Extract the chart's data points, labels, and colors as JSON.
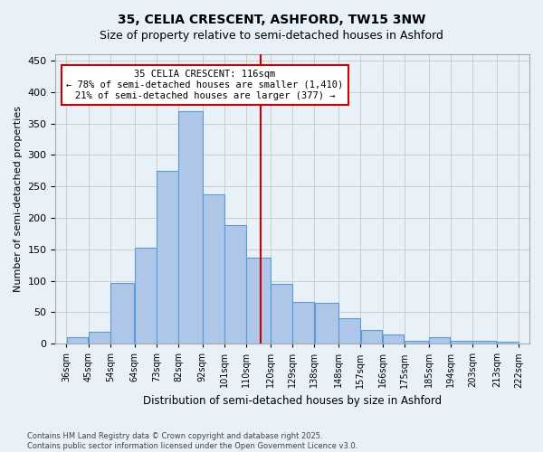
{
  "title1": "35, CELIA CRESCENT, ASHFORD, TW15 3NW",
  "title2": "Size of property relative to semi-detached houses in Ashford",
  "xlabel": "Distribution of semi-detached houses by size in Ashford",
  "ylabel": "Number of semi-detached properties",
  "bin_labels": [
    "36sqm",
    "45sqm",
    "54sqm",
    "64sqm",
    "73sqm",
    "82sqm",
    "92sqm",
    "101sqm",
    "110sqm",
    "120sqm",
    "129sqm",
    "138sqm",
    "148sqm",
    "157sqm",
    "166sqm",
    "175sqm",
    "185sqm",
    "194sqm",
    "203sqm",
    "213sqm",
    "222sqm"
  ],
  "bar_heights": [
    10,
    19,
    96,
    152,
    275,
    370,
    237,
    188,
    136,
    95,
    66,
    65,
    40,
    22,
    15,
    5,
    10,
    5,
    4,
    3
  ],
  "bar_color": "#aec6e8",
  "bar_edge_color": "#5b9bd5",
  "grid_color": "#cccccc",
  "bg_color": "#e8f0f8",
  "vline_x": 116,
  "vline_color": "#cc0000",
  "annotation_title": "35 CELIA CRESCENT: 116sqm",
  "annotation_line1": "← 78% of semi-detached houses are smaller (1,410)",
  "annotation_line2": "21% of semi-detached houses are larger (377) →",
  "annotation_box_color": "#cc0000",
  "footnote1": "Contains HM Land Registry data © Crown copyright and database right 2025.",
  "footnote2": "Contains public sector information licensed under the Open Government Licence v3.0.",
  "ylim": [
    0,
    460
  ],
  "bin_width": 9,
  "bin_edges": [
    36,
    45,
    54,
    64,
    73,
    82,
    92,
    101,
    110,
    120,
    129,
    138,
    148,
    157,
    166,
    175,
    185,
    194,
    203,
    213,
    222
  ]
}
